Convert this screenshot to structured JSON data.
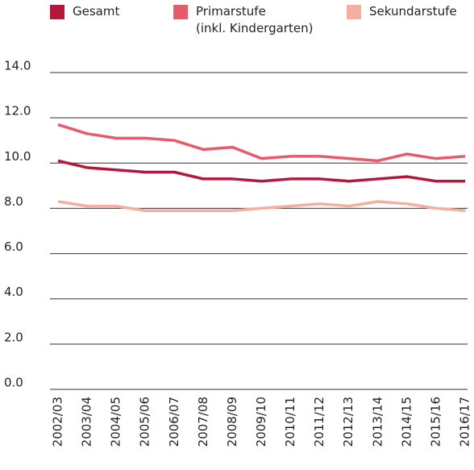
{
  "chart_data": {
    "type": "line",
    "categories": [
      "2002/03",
      "2003/04",
      "2004/05",
      "2005/06",
      "2006/07",
      "2007/08",
      "2008/09",
      "2009/10",
      "2010/11",
      "2011/12",
      "2012/13",
      "2013/14",
      "2014/15",
      "2015/16",
      "2016/17"
    ],
    "series": [
      {
        "name": "Gesamt",
        "color": "#b5173b",
        "values": [
          10.1,
          9.8,
          9.7,
          9.6,
          9.6,
          9.3,
          9.3,
          9.2,
          9.3,
          9.3,
          9.2,
          9.3,
          9.4,
          9.2,
          9.2
        ]
      },
      {
        "name": "Primarstufe\n(inkl. Kindergarten)",
        "color": "#e85a6a",
        "values": [
          11.7,
          11.3,
          11.1,
          11.1,
          11.0,
          10.6,
          10.7,
          10.2,
          10.3,
          10.3,
          10.2,
          10.1,
          10.4,
          10.2,
          10.3
        ]
      },
      {
        "name": "Sekundarstufe",
        "color": "#f5ae9f",
        "values": [
          8.3,
          8.1,
          8.1,
          7.9,
          7.9,
          7.9,
          7.9,
          8.0,
          8.1,
          8.2,
          8.1,
          8.3,
          8.2,
          8.0,
          7.9
        ]
      }
    ],
    "ylim": [
      0,
      14
    ],
    "yticks": [
      {
        "value": 0,
        "label": "0.0"
      },
      {
        "value": 2,
        "label": "2.0"
      },
      {
        "value": 4,
        "label": "4.0"
      },
      {
        "value": 6,
        "label": "6.0"
      },
      {
        "value": 8,
        "label": "8.0"
      },
      {
        "value": 10,
        "label": "10.0"
      },
      {
        "value": 12,
        "label": "12.0"
      },
      {
        "value": 14,
        "label": "14.0"
      }
    ],
    "grid": true,
    "legend": "top"
  }
}
